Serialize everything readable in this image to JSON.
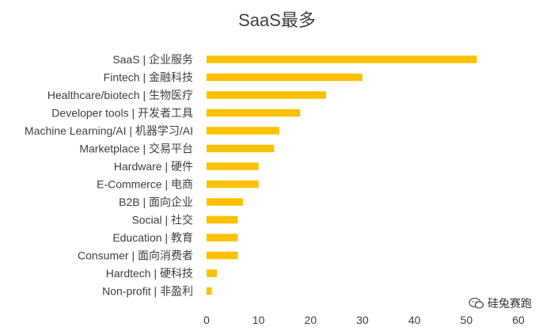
{
  "chart_data": {
    "type": "bar",
    "orientation": "horizontal",
    "title": "SaaS最多",
    "categories": [
      "SaaS | 企业服务",
      "Fintech | 金融科技",
      "Healthcare/biotech | 生物医疗",
      "Developer tools | 开发者工具",
      "Machine Learning/AI | 机器学习/AI",
      "Marketplace | 交易平台",
      "Hardware | 硬件",
      "E-Commerce | 电商",
      "B2B | 面向企业",
      "Social | 社交",
      "Education | 教育",
      "Consumer | 面向消费者",
      "Hardtech | 硬科技",
      "Non-profit | 非盈利"
    ],
    "values": [
      52,
      30,
      23,
      18,
      14,
      13,
      10,
      10,
      7,
      6,
      6,
      6,
      2,
      1
    ],
    "xlim": [
      0,
      60
    ],
    "xticks": [
      0,
      10,
      20,
      30,
      40,
      50,
      60
    ],
    "xlabel": "",
    "ylabel": "",
    "grid": false,
    "bar_color": "#FFC000"
  },
  "watermark": {
    "icon": "wechat-icon",
    "text": "硅兔赛跑"
  }
}
